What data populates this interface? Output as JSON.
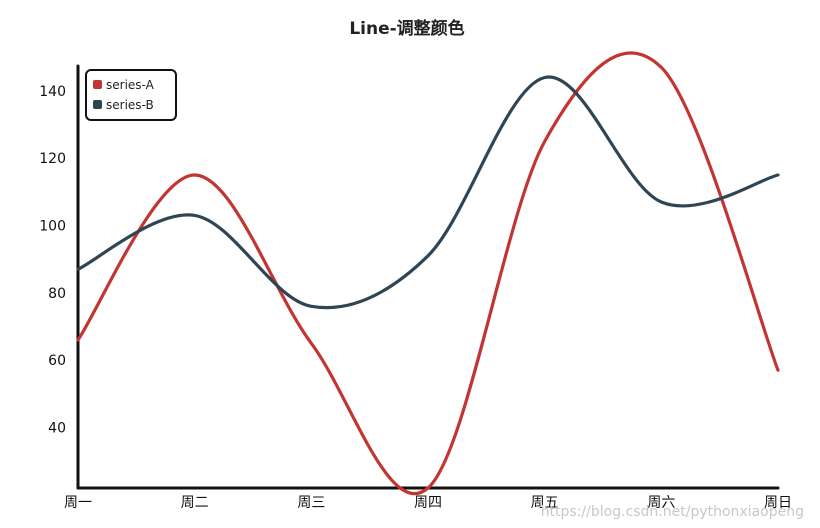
{
  "chart_data": {
    "type": "line",
    "title": "Line-调整颜色",
    "categories": [
      "周一",
      "周二",
      "周三",
      "周四",
      "周五",
      "周六",
      "周日"
    ],
    "series": [
      {
        "name": "series-A",
        "color": "#c23531",
        "values": [
          66,
          115,
          65,
          22,
          125,
          147,
          57
        ]
      },
      {
        "name": "series-B",
        "color": "#2f4554",
        "values": [
          87,
          103,
          76,
          91,
          144,
          107,
          115
        ]
      }
    ],
    "yticks": [
      40,
      60,
      80,
      100,
      120,
      140
    ],
    "ylim": [
      22,
      148
    ],
    "smooth": true,
    "legend": "top-left",
    "grid": false
  },
  "watermark": "https://blog.csdn.net/pythonxiaopeng"
}
